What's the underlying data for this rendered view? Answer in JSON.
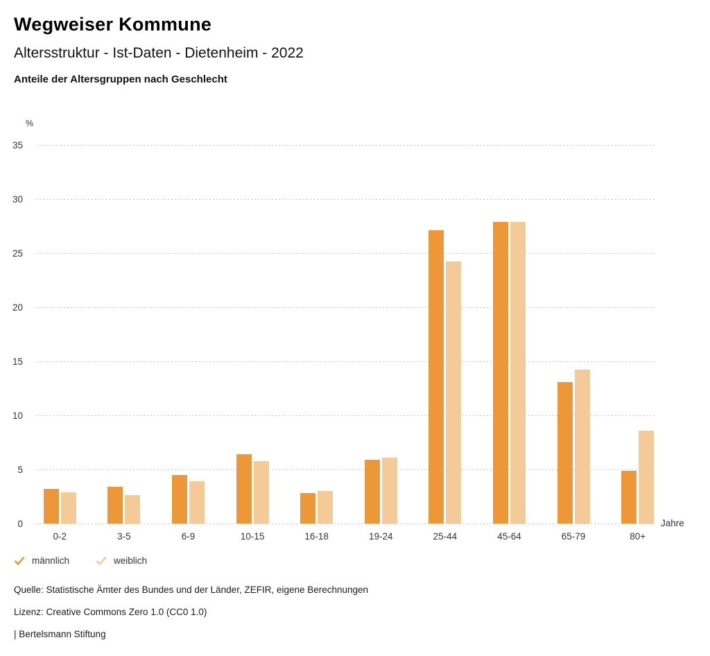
{
  "header": {
    "title": "Wegweiser Kommune",
    "subtitle": "Altersstruktur - Ist-Daten - Dietenheim - 2022",
    "heading": "Anteile der Altersgruppen nach Geschlecht"
  },
  "chart_data": {
    "type": "bar",
    "title": "Anteile der Altersgruppen nach Geschlecht",
    "categories": [
      "0-2",
      "3-5",
      "6-9",
      "10-15",
      "16-18",
      "19-24",
      "25-44",
      "45-64",
      "65-79",
      "80+"
    ],
    "series": [
      {
        "name": "männlich",
        "color": "#EC9838",
        "values": [
          3.2,
          3.4,
          4.5,
          6.4,
          2.8,
          5.9,
          27.1,
          27.9,
          13.1,
          4.9
        ]
      },
      {
        "name": "weiblich",
        "color": "#F4CB98",
        "values": [
          2.9,
          2.6,
          3.9,
          5.8,
          3.0,
          6.1,
          24.2,
          27.9,
          14.2,
          8.6
        ]
      }
    ],
    "xlabel": "Jahre",
    "ylabel": "%",
    "ylim": [
      0,
      35
    ],
    "yticks": [
      0,
      5,
      10,
      15,
      20,
      25,
      30,
      35
    ],
    "grid": "dotted-horizontal",
    "legend_position": "bottom-left",
    "gridline_color": "#c3c3c3"
  },
  "footer": {
    "source": "Quelle: Statistische Ämter des Bundes und der Länder, ZEFIR, eigene Berechnungen",
    "license": "Lizenz: Creative Commons Zero 1.0 (CC0 1.0)",
    "attribution": "| Bertelsmann Stiftung"
  }
}
